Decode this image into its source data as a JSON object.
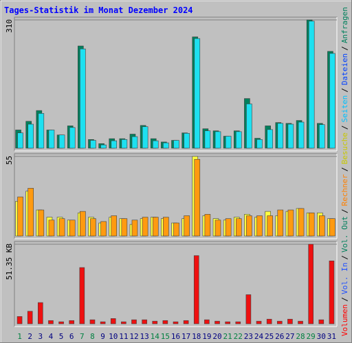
{
  "title": "Tages-Statistik im Monat Dezember 2024",
  "legend_separator": "/",
  "legend": [
    {
      "name": "Volumen",
      "color": "#ff0000"
    },
    {
      "name": "Vol. In",
      "color": "#2050ff"
    },
    {
      "name": "Vol. Out",
      "color": "#00805c"
    },
    {
      "name": "Rechner",
      "color": "#ff8000"
    },
    {
      "name": "Besuche",
      "color": "#c8c800"
    },
    {
      "name": "Seiten",
      "color": "#00c0ff"
    },
    {
      "name": "Dateien",
      "color": "#0040ff"
    },
    {
      "name": "Anfragen",
      "color": "#00805c"
    }
  ],
  "chart_data": [
    {
      "type": "bar",
      "ylim": [
        0,
        310
      ],
      "yticks": [
        310
      ],
      "series": [
        {
          "name": "Anfragen",
          "color": "#00805c",
          "values": [
            44,
            65,
            91,
            44,
            32,
            54,
            247,
            21,
            11,
            23,
            23,
            34,
            55,
            23,
            15,
            19,
            37,
            269,
            47,
            42,
            29,
            42,
            120,
            24,
            54,
            62,
            60,
            67,
            310,
            60,
            234
          ]
        },
        {
          "name": "Dateien",
          "color": "#1ee0f0",
          "values": [
            37,
            58,
            84,
            44,
            32,
            50,
            240,
            19,
            8,
            18,
            21,
            28,
            52,
            18,
            13,
            19,
            36,
            265,
            42,
            40,
            29,
            40,
            107,
            21,
            45,
            60,
            58,
            63,
            307,
            57,
            229
          ]
        }
      ]
    },
    {
      "type": "bar",
      "ylim": [
        0,
        55
      ],
      "yticks": [
        55
      ],
      "series": [
        {
          "name": "Besuche",
          "color": "#ffff40",
          "values": [
            24,
            31,
            18,
            13,
            13,
            11,
            16,
            13,
            9,
            13,
            12,
            8,
            12,
            13,
            12,
            9,
            12,
            55,
            14,
            12,
            11,
            13,
            15,
            13,
            17,
            14,
            17,
            19,
            16,
            16,
            12
          ]
        },
        {
          "name": "Rechner",
          "color": "#ff9a10",
          "values": [
            27,
            33,
            18,
            11,
            12,
            11,
            17,
            12,
            10,
            14,
            12,
            11,
            13,
            13,
            13,
            9,
            14,
            53,
            15,
            11,
            12,
            12,
            14,
            14,
            14,
            18,
            18,
            19,
            16,
            14,
            12
          ]
        }
      ]
    },
    {
      "type": "bar",
      "ylim": [
        0,
        51.35
      ],
      "yticks": [
        {
          "value": 51.35,
          "label": "51.35 KB"
        }
      ],
      "categories": [
        "1",
        "2",
        "3",
        "4",
        "5",
        "6",
        "7",
        "8",
        "9",
        "10",
        "11",
        "12",
        "13",
        "14",
        "15",
        "16",
        "17",
        "18",
        "19",
        "20",
        "21",
        "22",
        "23",
        "24",
        "25",
        "26",
        "27",
        "28",
        "29",
        "30",
        "31"
      ],
      "category_colors": [
        "#008040",
        "#000080",
        "#000080",
        "#000080",
        "#000080",
        "#000080",
        "#008040",
        "#008040",
        "#000080",
        "#000080",
        "#000080",
        "#000080",
        "#000080",
        "#008040",
        "#008040",
        "#000080",
        "#000080",
        "#000080",
        "#000080",
        "#000080",
        "#008040",
        "#008040",
        "#000080",
        "#000080",
        "#000080",
        "#000080",
        "#000080",
        "#008040",
        "#008040",
        "#000080",
        "#000080"
      ],
      "series": [
        {
          "name": "Volumen",
          "color": "#ee1010",
          "values": [
            4.7,
            8.1,
            13.7,
            2.1,
            1.3,
            2.1,
            36.3,
            2.6,
            1.3,
            3.4,
            1.3,
            2.6,
            2.6,
            1.7,
            2.1,
            1.3,
            2.1,
            44,
            2.6,
            1.7,
            1.3,
            1.3,
            18.8,
            1.7,
            3,
            1.7,
            3,
            1.7,
            51.35,
            2.6,
            40.6
          ]
        }
      ]
    }
  ]
}
